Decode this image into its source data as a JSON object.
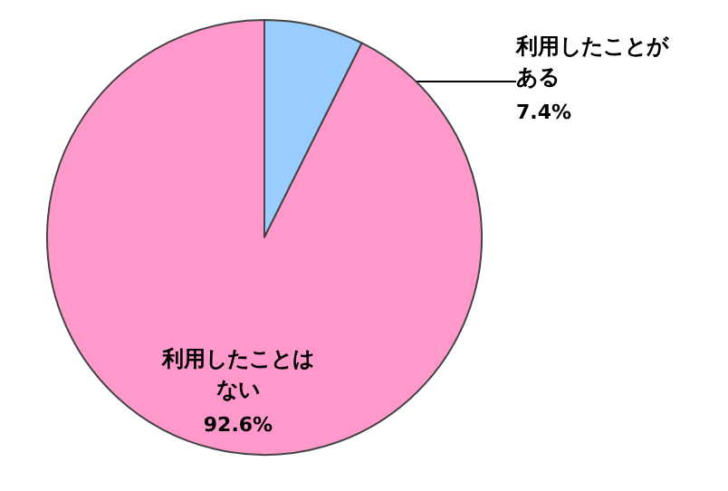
{
  "chart_data": {
    "type": "pie",
    "categories": [
      "利用したことがある",
      "利用したことはない"
    ],
    "values": [
      7.4,
      92.6
    ],
    "colors": [
      "#99ccff",
      "#ff99cc"
    ],
    "value_labels": [
      "7.4%",
      "92.6%"
    ],
    "legend": false
  }
}
